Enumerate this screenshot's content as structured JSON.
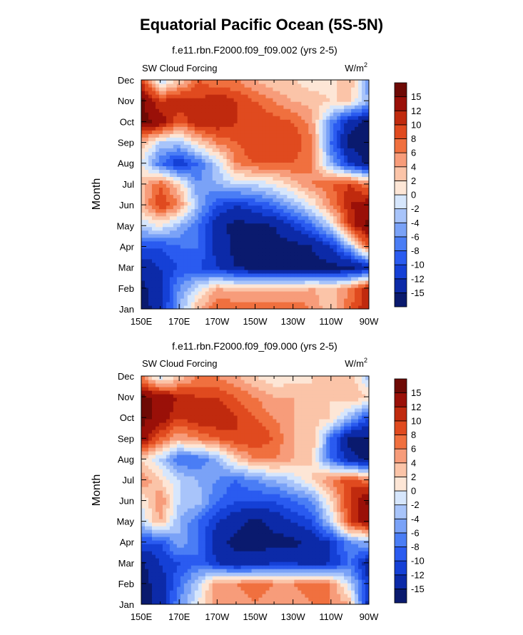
{
  "title": "Equatorial Pacific Ocean (5S-5N)",
  "colorbar": {
    "levels": [
      -15,
      -12,
      -10,
      -8,
      -6,
      -4,
      -2,
      0,
      2,
      4,
      6,
      8,
      10,
      12,
      15
    ],
    "colors": [
      "#0a1a6e",
      "#0c2aa8",
      "#1540d6",
      "#2a5bf0",
      "#4a7df5",
      "#7aa2f7",
      "#a8c4fa",
      "#d6e6fc",
      "#fde6d6",
      "#fbc4a8",
      "#f79c7a",
      "#f0703f",
      "#e04a1f",
      "#c02a0e",
      "#9a1008",
      "#6e0a05"
    ]
  },
  "panels": [
    {
      "subtitle": "f.e11.rbn.F2000.f09_f09.002 (yrs 2-5)",
      "left_label": "SW Cloud Forcing",
      "units": "W/m",
      "units_sup": "2",
      "ylabel": "Month"
    },
    {
      "subtitle": "f.e11.rbn.F2000.f09_f09.000 (yrs 2-5)",
      "left_label": "SW Cloud Forcing",
      "units": "W/m",
      "units_sup": "2",
      "ylabel": "Month"
    }
  ],
  "chart_data": [
    {
      "type": "heatmap",
      "title": "f.e11.rbn.F2000.f09_f09.002 (yrs 2-5)",
      "xlabel": "",
      "ylabel": "Month",
      "x": [
        "150E",
        "160E",
        "170E",
        "180",
        "170W",
        "160W",
        "150W",
        "140W",
        "130W",
        "120W",
        "110W",
        "100W",
        "90W"
      ],
      "y": [
        "Jan",
        "Feb",
        "Mar",
        "Apr",
        "May",
        "Jun",
        "Jul",
        "Aug",
        "Sep",
        "Oct",
        "Nov",
        "Dec"
      ],
      "x_tick_labels": [
        "150E",
        "170E",
        "170W",
        "150W",
        "130W",
        "110W",
        "90W"
      ],
      "y_tick_labels": [
        "Jan",
        "Feb",
        "Mar",
        "Apr",
        "May",
        "Jun",
        "Jul",
        "Aug",
        "Sep",
        "Oct",
        "Nov",
        "Dec"
      ],
      "z": [
        [
          -16,
          -14,
          -4,
          4,
          8,
          8,
          8,
          8,
          8,
          6,
          2,
          8,
          12
        ],
        [
          -16,
          -13,
          -6,
          -1,
          4,
          3,
          3,
          3,
          3,
          4,
          3,
          6,
          12
        ],
        [
          -14,
          -12,
          -10,
          -10,
          -12,
          -15,
          -16,
          -16,
          -16,
          -16,
          -16,
          -16,
          -14
        ],
        [
          -10,
          -10,
          -8,
          -8,
          -13,
          -16,
          -16,
          -16,
          -16,
          -15,
          -12,
          -4,
          8
        ],
        [
          -2,
          0,
          -4,
          -8,
          -14,
          -16,
          -16,
          -15,
          -12,
          -8,
          -2,
          10,
          16
        ],
        [
          3,
          10,
          6,
          -4,
          -10,
          -12,
          -10,
          -8,
          -4,
          0,
          6,
          12,
          14
        ],
        [
          3,
          8,
          2,
          -6,
          -4,
          -2,
          -2,
          0,
          3,
          6,
          8,
          10,
          6
        ],
        [
          0,
          -8,
          -12,
          -8,
          -2,
          6,
          8,
          8,
          8,
          6,
          -4,
          -12,
          -16
        ],
        [
          4,
          -2,
          -3,
          2,
          6,
          8,
          10,
          10,
          10,
          6,
          -8,
          -16,
          -16
        ],
        [
          16,
          14,
          8,
          12,
          12,
          10,
          10,
          9,
          8,
          5,
          -6,
          -14,
          -16
        ],
        [
          16,
          10,
          12,
          10,
          12,
          10,
          8,
          6,
          4,
          3,
          2,
          2,
          -4
        ],
        [
          10,
          -2,
          2,
          8,
          6,
          6,
          4,
          2,
          2,
          1,
          1,
          4,
          -6
        ]
      ],
      "zlevels": [
        -15,
        -12,
        -10,
        -8,
        -6,
        -4,
        -2,
        0,
        2,
        4,
        6,
        8,
        10,
        12,
        15
      ]
    },
    {
      "type": "heatmap",
      "title": "f.e11.rbn.F2000.f09_f09.000 (yrs 2-5)",
      "xlabel": "",
      "ylabel": "Month",
      "x": [
        "150E",
        "160E",
        "170E",
        "180",
        "170W",
        "160W",
        "150W",
        "140W",
        "130W",
        "120W",
        "110W",
        "100W",
        "90W"
      ],
      "y": [
        "Jan",
        "Feb",
        "Mar",
        "Apr",
        "May",
        "Jun",
        "Jul",
        "Aug",
        "Sep",
        "Oct",
        "Nov",
        "Dec"
      ],
      "x_tick_labels": [
        "150E",
        "170E",
        "170W",
        "150W",
        "130W",
        "110W",
        "90W"
      ],
      "y_tick_labels": [
        "Jan",
        "Feb",
        "Mar",
        "Apr",
        "May",
        "Jun",
        "Jul",
        "Aug",
        "Sep",
        "Oct",
        "Nov",
        "Dec"
      ],
      "z": [
        [
          -16,
          -14,
          -6,
          0,
          6,
          4,
          6,
          4,
          4,
          6,
          6,
          4,
          -14
        ],
        [
          -16,
          -14,
          -8,
          -2,
          6,
          6,
          8,
          6,
          6,
          8,
          6,
          -2,
          -12
        ],
        [
          -16,
          -12,
          -10,
          -8,
          -12,
          -14,
          -14,
          -12,
          -12,
          -14,
          -12,
          -8,
          -14
        ],
        [
          -10,
          -10,
          -4,
          -8,
          -14,
          -16,
          -16,
          -16,
          -16,
          -14,
          -12,
          -6,
          -4
        ],
        [
          -2,
          4,
          -4,
          -8,
          -12,
          -14,
          -16,
          -14,
          -12,
          -10,
          -2,
          10,
          14
        ],
        [
          0,
          6,
          -2,
          -3,
          -8,
          -10,
          -10,
          -10,
          -8,
          -6,
          2,
          10,
          16
        ],
        [
          6,
          2,
          -2,
          -4,
          -6,
          -8,
          -6,
          -4,
          -2,
          2,
          6,
          10,
          6
        ],
        [
          2,
          -2,
          -8,
          -8,
          -4,
          2,
          6,
          6,
          4,
          2,
          -8,
          -14,
          -16
        ],
        [
          14,
          8,
          4,
          6,
          8,
          10,
          10,
          8,
          4,
          4,
          -8,
          -16,
          -16
        ],
        [
          16,
          14,
          10,
          12,
          12,
          10,
          8,
          6,
          4,
          3,
          2,
          -4,
          -10
        ],
        [
          16,
          14,
          12,
          10,
          10,
          8,
          6,
          4,
          4,
          2,
          2,
          4,
          2
        ],
        [
          6,
          -2,
          2,
          6,
          6,
          4,
          2,
          0,
          1,
          2,
          2,
          4,
          -4
        ]
      ],
      "zlevels": [
        -15,
        -12,
        -10,
        -8,
        -6,
        -4,
        -2,
        0,
        2,
        4,
        6,
        8,
        10,
        12,
        15
      ]
    }
  ]
}
